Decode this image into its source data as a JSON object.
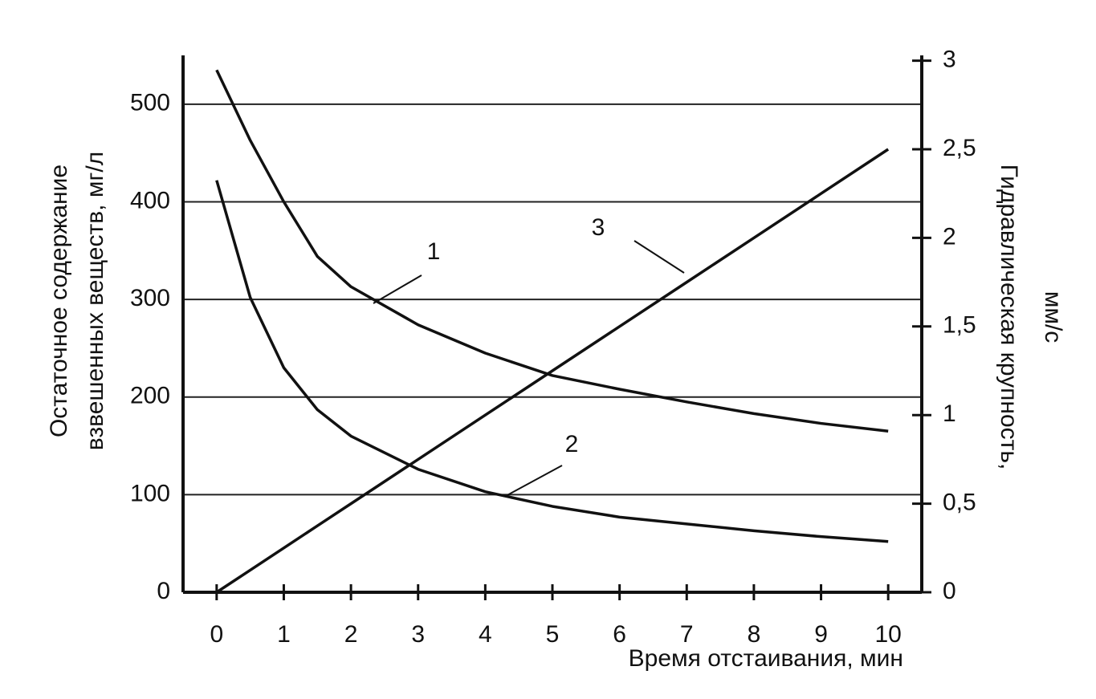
{
  "chart_data": {
    "type": "line",
    "xlabel": "Время отстаивания, мин",
    "ylabel": [
      "Остаточное содержание",
      "взвешенных веществ, мг/л"
    ],
    "y2label": [
      "Гидравлическая крупность,",
      "мм/с"
    ],
    "x": [
      0,
      0.5,
      1,
      1.5,
      2,
      3,
      4,
      5,
      6,
      7,
      8,
      9,
      10
    ],
    "xlim": [
      -0.5,
      10.5
    ],
    "xticks": [
      0,
      1,
      2,
      3,
      4,
      5,
      6,
      7,
      8,
      9,
      10
    ],
    "ylim": [
      0,
      550
    ],
    "yticks": [
      0,
      100,
      200,
      300,
      400,
      500
    ],
    "y2lim": [
      0,
      3.03
    ],
    "y2ticks": [
      0,
      {
        "value": 0.5,
        "label": "0,5"
      },
      1,
      {
        "value": 1.5,
        "label": "1,5"
      },
      2,
      {
        "value": 2.5,
        "label": "2,5"
      },
      3
    ],
    "grid": true,
    "series": [
      {
        "color": "#111111",
        "values": [
          535,
          463,
          400,
          344,
          313,
          274,
          245,
          222,
          208,
          195,
          183,
          173,
          165
        ]
      },
      {
        "color": "#111111",
        "values": [
          422,
          302,
          230,
          187,
          160,
          126,
          103,
          88,
          77,
          70,
          63,
          57,
          52
        ]
      },
      {
        "color": "#111111",
        "axis": "y2",
        "values": [
          0,
          0.125,
          0.25,
          0.375,
          0.5,
          0.75,
          1,
          1.25,
          1.5,
          1.75,
          2,
          2.25,
          2.5
        ]
      }
    ],
    "annotations": [
      {
        "text": "1",
        "series": 0
      },
      {
        "text": "2",
        "series": 1
      },
      {
        "text": "3",
        "series": 2
      }
    ]
  }
}
